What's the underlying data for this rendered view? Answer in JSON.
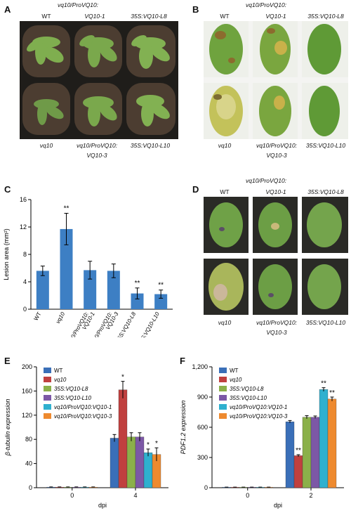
{
  "panel_a": {
    "letter": "A",
    "header_group": "vq10/ProVQ10:",
    "top_labels": [
      "WT",
      "VQ10-1",
      "35S:VQ10-L8"
    ],
    "bottom_labels": [
      "vq10",
      "vq10/ProVQ10:",
      "35S:VQ10-L10"
    ],
    "bottom_sub": "VQ10-3"
  },
  "panel_b": {
    "letter": "B",
    "header_group": "vq10/ProVQ10:",
    "top_labels": [
      "WT",
      "VQ10-1",
      "35S:VQ10-L8"
    ],
    "bottom_labels": [
      "vq10",
      "vq10/ProVQ10:",
      "35S:VQ10-L10"
    ],
    "bottom_sub": "VQ10-3"
  },
  "panel_d": {
    "letter": "D",
    "header_group": "vq10/ProVQ10:",
    "top_labels": [
      "WT",
      "VQ10-1",
      "35S:VQ10-L8"
    ],
    "bottom_labels": [
      "vq10",
      "vq10/ProVQ10:",
      "35S:VQ10-L10"
    ],
    "bottom_sub": "VQ10-3"
  },
  "chart_data": [
    {
      "panel": "C",
      "type": "bar",
      "ylabel": "Lesion area (mm²)",
      "ylim": [
        0,
        16
      ],
      "yticks": [
        "0",
        "4",
        "8",
        "12",
        "16"
      ],
      "categories": [
        "WT",
        "vq10",
        "vq10/ProVQ10:\nVQ10-1",
        "vq10/ProVQ10:\nVQ10-3",
        "35S:VQ10-L8",
        "35S:VQ10-L10"
      ],
      "values": [
        5.6,
        11.7,
        5.7,
        5.6,
        2.3,
        2.2
      ],
      "errors": [
        0.7,
        2.3,
        1.3,
        1.0,
        0.8,
        0.6
      ],
      "annotations": [
        "",
        "**",
        "",
        "",
        "**",
        "**"
      ],
      "color": "#3d7fc4"
    },
    {
      "panel": "E",
      "type": "bar",
      "ylabel": "β-tubulin expression",
      "xlabel": "dpi",
      "ylim": [
        0,
        200
      ],
      "yticks": [
        "0",
        "40",
        "80",
        "120",
        "160",
        "200"
      ],
      "categories": [
        "0",
        "4"
      ],
      "series": [
        {
          "name": "WT",
          "color": "#3a6fb8",
          "values": [
            1,
            82
          ],
          "errors": [
            0.3,
            6
          ],
          "annotations": [
            "",
            ""
          ]
        },
        {
          "name": "vq10",
          "color": "#c0403f",
          "values": [
            1,
            162
          ],
          "errors": [
            0.3,
            14
          ],
          "annotations": [
            "",
            "*"
          ]
        },
        {
          "name": "35S:VQ10-L8",
          "color": "#8bb04a",
          "values": [
            1,
            84
          ],
          "errors": [
            0.3,
            7
          ],
          "annotations": [
            "",
            ""
          ]
        },
        {
          "name": "35S:VQ10-L10",
          "color": "#7c58a6",
          "values": [
            1,
            84
          ],
          "errors": [
            0.3,
            7
          ],
          "annotations": [
            "",
            ""
          ]
        },
        {
          "name": "vq10/ProVQ10:VQ10-1",
          "color": "#2fb0cf",
          "values": [
            1,
            58
          ],
          "errors": [
            0.3,
            6
          ],
          "annotations": [
            "",
            "*"
          ]
        },
        {
          "name": "vq10/ProVQ10:VQ10-3",
          "color": "#ee8a2f",
          "values": [
            1,
            55
          ],
          "errors": [
            0.3,
            11
          ],
          "annotations": [
            "",
            "*"
          ]
        }
      ]
    },
    {
      "panel": "F",
      "type": "bar",
      "ylabel": "PDF1.2 expression",
      "xlabel": "dpi",
      "ylim": [
        0,
        1200
      ],
      "yticks": [
        "0",
        "300",
        "600",
        "900",
        "1,200"
      ],
      "categories": [
        "0",
        "2"
      ],
      "series": [
        {
          "name": "WT",
          "color": "#3a6fb8",
          "values": [
            5,
            655
          ],
          "errors": [
            1,
            12
          ],
          "annotations": [
            "",
            ""
          ]
        },
        {
          "name": "vq10",
          "color": "#c0403f",
          "values": [
            5,
            318
          ],
          "errors": [
            1,
            10
          ],
          "annotations": [
            "",
            "**"
          ]
        },
        {
          "name": "35S:VQ10-L8",
          "color": "#8bb04a",
          "values": [
            5,
            700
          ],
          "errors": [
            1,
            15
          ],
          "annotations": [
            "",
            ""
          ]
        },
        {
          "name": "35S:VQ10-L10",
          "color": "#7c58a6",
          "values": [
            5,
            700
          ],
          "errors": [
            1,
            12
          ],
          "annotations": [
            "",
            ""
          ]
        },
        {
          "name": "vq10/ProVQ10:VQ10-1",
          "color": "#2fb0cf",
          "values": [
            5,
            975
          ],
          "errors": [
            1,
            18
          ],
          "annotations": [
            "",
            "**"
          ]
        },
        {
          "name": "vq10/ProVQ10:VQ10-3",
          "color": "#ee8a2f",
          "values": [
            5,
            880
          ],
          "errors": [
            1,
            20
          ],
          "annotations": [
            "",
            "**"
          ]
        }
      ]
    }
  ]
}
